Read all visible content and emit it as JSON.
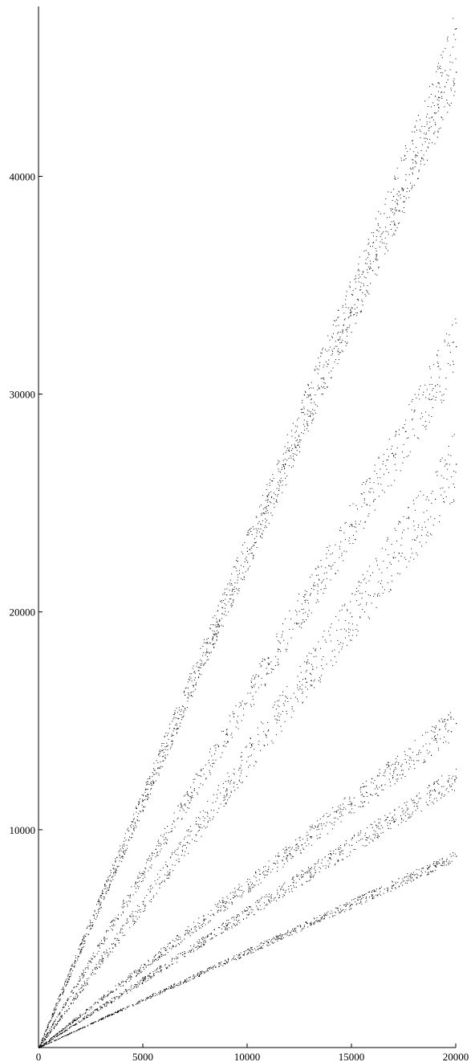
{
  "chart_data": {
    "type": "scatter",
    "title": "",
    "xlabel": "",
    "ylabel": "",
    "xlim": [
      0,
      20000
    ],
    "ylim": [
      0,
      47800
    ],
    "grid": false,
    "legend": "none",
    "x_ticks": [
      0,
      5000,
      10000,
      15000,
      20000
    ],
    "x_tick_labels": [
      "0",
      "5000",
      "10000",
      "15000",
      "20000"
    ],
    "y_ticks": [
      10000,
      20000,
      30000,
      40000
    ],
    "y_tick_labels": [
      "10000",
      "20000",
      "30000",
      "40000"
    ],
    "point_color": "#000000",
    "series": [
      {
        "values": [
          [
            1000,
            2200
          ],
          [
            2500,
            5500
          ],
          [
            4000,
            8800
          ],
          [
            5500,
            12200
          ],
          [
            7000,
            15600
          ],
          [
            8500,
            19000
          ],
          [
            10000,
            22300
          ],
          [
            11500,
            25600
          ],
          [
            13000,
            29000
          ],
          [
            14500,
            32400
          ],
          [
            16000,
            35700
          ],
          [
            17500,
            39100
          ],
          [
            19000,
            42400
          ],
          [
            20000,
            44800
          ]
        ]
      },
      {
        "values": [
          [
            1000,
            2400
          ],
          [
            3000,
            7000
          ],
          [
            5000,
            11600
          ],
          [
            7000,
            16200
          ],
          [
            9000,
            20800
          ],
          [
            11000,
            25400
          ],
          [
            13000,
            30000
          ],
          [
            15000,
            34600
          ],
          [
            17000,
            39100
          ],
          [
            19000,
            43700
          ],
          [
            20000,
            46800
          ]
        ]
      },
      {
        "values": [
          [
            1000,
            1600
          ],
          [
            3000,
            4800
          ],
          [
            5000,
            8000
          ],
          [
            7000,
            11200
          ],
          [
            9000,
            14400
          ],
          [
            11000,
            17600
          ],
          [
            13000,
            20800
          ],
          [
            15000,
            24000
          ],
          [
            17000,
            27200
          ],
          [
            19000,
            30400
          ],
          [
            20000,
            32200
          ]
        ]
      },
      {
        "values": [
          [
            1000,
            1300
          ],
          [
            3000,
            4000
          ],
          [
            5000,
            6600
          ],
          [
            7000,
            9300
          ],
          [
            9000,
            11900
          ],
          [
            11000,
            14600
          ],
          [
            13000,
            17200
          ],
          [
            15000,
            19800
          ],
          [
            17000,
            22500
          ],
          [
            19000,
            25200
          ],
          [
            20000,
            26800
          ]
        ]
      },
      {
        "values": [
          [
            1000,
            740
          ],
          [
            3000,
            2250
          ],
          [
            5000,
            3700
          ],
          [
            7000,
            5200
          ],
          [
            9000,
            6700
          ],
          [
            11000,
            8200
          ],
          [
            13000,
            9700
          ],
          [
            15000,
            11200
          ],
          [
            17000,
            12700
          ],
          [
            19000,
            14200
          ],
          [
            20000,
            14900
          ]
        ]
      },
      {
        "values": [
          [
            1000,
            620
          ],
          [
            3000,
            1870
          ],
          [
            5000,
            3100
          ],
          [
            7000,
            4350
          ],
          [
            9000,
            5600
          ],
          [
            11000,
            6800
          ],
          [
            13000,
            8050
          ],
          [
            15000,
            9300
          ],
          [
            17000,
            10500
          ],
          [
            19000,
            11800
          ],
          [
            20000,
            12400
          ]
        ]
      },
      {
        "values": [
          [
            1000,
            440
          ],
          [
            3000,
            1320
          ],
          [
            5000,
            2200
          ],
          [
            7000,
            3080
          ],
          [
            9000,
            3960
          ],
          [
            11000,
            4840
          ],
          [
            13000,
            5720
          ],
          [
            15000,
            6600
          ],
          [
            17000,
            7480
          ],
          [
            19000,
            8360
          ],
          [
            20000,
            8800
          ]
        ]
      }
    ]
  }
}
